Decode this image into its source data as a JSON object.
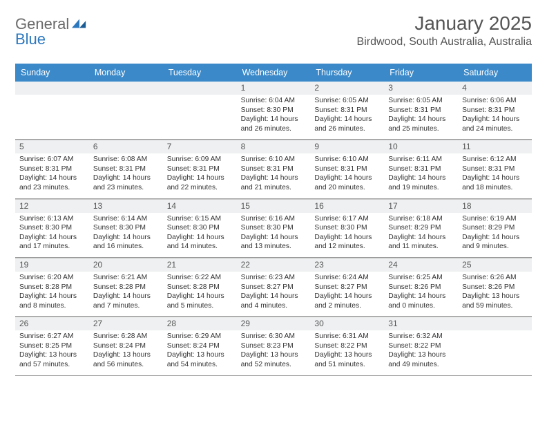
{
  "logo": {
    "text1": "General",
    "text2": "Blue"
  },
  "title": "January 2025",
  "location": "Birdwood, South Australia, Australia",
  "colors": {
    "header_bg": "#3b89c9",
    "header_text": "#ffffff",
    "numstrip_bg": "#eef0f1",
    "border": "#9a9a9a",
    "title_text": "#555555"
  },
  "weekdays": [
    "Sunday",
    "Monday",
    "Tuesday",
    "Wednesday",
    "Thursday",
    "Friday",
    "Saturday"
  ],
  "weeks": [
    {
      "nums": [
        "",
        "",
        "",
        "1",
        "2",
        "3",
        "4"
      ],
      "cells": [
        null,
        null,
        null,
        {
          "sunrise": "Sunrise: 6:04 AM",
          "sunset": "Sunset: 8:30 PM",
          "dl1": "Daylight: 14 hours",
          "dl2": "and 26 minutes."
        },
        {
          "sunrise": "Sunrise: 6:05 AM",
          "sunset": "Sunset: 8:31 PM",
          "dl1": "Daylight: 14 hours",
          "dl2": "and 26 minutes."
        },
        {
          "sunrise": "Sunrise: 6:05 AM",
          "sunset": "Sunset: 8:31 PM",
          "dl1": "Daylight: 14 hours",
          "dl2": "and 25 minutes."
        },
        {
          "sunrise": "Sunrise: 6:06 AM",
          "sunset": "Sunset: 8:31 PM",
          "dl1": "Daylight: 14 hours",
          "dl2": "and 24 minutes."
        }
      ]
    },
    {
      "nums": [
        "5",
        "6",
        "7",
        "8",
        "9",
        "10",
        "11"
      ],
      "cells": [
        {
          "sunrise": "Sunrise: 6:07 AM",
          "sunset": "Sunset: 8:31 PM",
          "dl1": "Daylight: 14 hours",
          "dl2": "and 23 minutes."
        },
        {
          "sunrise": "Sunrise: 6:08 AM",
          "sunset": "Sunset: 8:31 PM",
          "dl1": "Daylight: 14 hours",
          "dl2": "and 23 minutes."
        },
        {
          "sunrise": "Sunrise: 6:09 AM",
          "sunset": "Sunset: 8:31 PM",
          "dl1": "Daylight: 14 hours",
          "dl2": "and 22 minutes."
        },
        {
          "sunrise": "Sunrise: 6:10 AM",
          "sunset": "Sunset: 8:31 PM",
          "dl1": "Daylight: 14 hours",
          "dl2": "and 21 minutes."
        },
        {
          "sunrise": "Sunrise: 6:10 AM",
          "sunset": "Sunset: 8:31 PM",
          "dl1": "Daylight: 14 hours",
          "dl2": "and 20 minutes."
        },
        {
          "sunrise": "Sunrise: 6:11 AM",
          "sunset": "Sunset: 8:31 PM",
          "dl1": "Daylight: 14 hours",
          "dl2": "and 19 minutes."
        },
        {
          "sunrise": "Sunrise: 6:12 AM",
          "sunset": "Sunset: 8:31 PM",
          "dl1": "Daylight: 14 hours",
          "dl2": "and 18 minutes."
        }
      ]
    },
    {
      "nums": [
        "12",
        "13",
        "14",
        "15",
        "16",
        "17",
        "18"
      ],
      "cells": [
        {
          "sunrise": "Sunrise: 6:13 AM",
          "sunset": "Sunset: 8:30 PM",
          "dl1": "Daylight: 14 hours",
          "dl2": "and 17 minutes."
        },
        {
          "sunrise": "Sunrise: 6:14 AM",
          "sunset": "Sunset: 8:30 PM",
          "dl1": "Daylight: 14 hours",
          "dl2": "and 16 minutes."
        },
        {
          "sunrise": "Sunrise: 6:15 AM",
          "sunset": "Sunset: 8:30 PM",
          "dl1": "Daylight: 14 hours",
          "dl2": "and 14 minutes."
        },
        {
          "sunrise": "Sunrise: 6:16 AM",
          "sunset": "Sunset: 8:30 PM",
          "dl1": "Daylight: 14 hours",
          "dl2": "and 13 minutes."
        },
        {
          "sunrise": "Sunrise: 6:17 AM",
          "sunset": "Sunset: 8:30 PM",
          "dl1": "Daylight: 14 hours",
          "dl2": "and 12 minutes."
        },
        {
          "sunrise": "Sunrise: 6:18 AM",
          "sunset": "Sunset: 8:29 PM",
          "dl1": "Daylight: 14 hours",
          "dl2": "and 11 minutes."
        },
        {
          "sunrise": "Sunrise: 6:19 AM",
          "sunset": "Sunset: 8:29 PM",
          "dl1": "Daylight: 14 hours",
          "dl2": "and 9 minutes."
        }
      ]
    },
    {
      "nums": [
        "19",
        "20",
        "21",
        "22",
        "23",
        "24",
        "25"
      ],
      "cells": [
        {
          "sunrise": "Sunrise: 6:20 AM",
          "sunset": "Sunset: 8:28 PM",
          "dl1": "Daylight: 14 hours",
          "dl2": "and 8 minutes."
        },
        {
          "sunrise": "Sunrise: 6:21 AM",
          "sunset": "Sunset: 8:28 PM",
          "dl1": "Daylight: 14 hours",
          "dl2": "and 7 minutes."
        },
        {
          "sunrise": "Sunrise: 6:22 AM",
          "sunset": "Sunset: 8:28 PM",
          "dl1": "Daylight: 14 hours",
          "dl2": "and 5 minutes."
        },
        {
          "sunrise": "Sunrise: 6:23 AM",
          "sunset": "Sunset: 8:27 PM",
          "dl1": "Daylight: 14 hours",
          "dl2": "and 4 minutes."
        },
        {
          "sunrise": "Sunrise: 6:24 AM",
          "sunset": "Sunset: 8:27 PM",
          "dl1": "Daylight: 14 hours",
          "dl2": "and 2 minutes."
        },
        {
          "sunrise": "Sunrise: 6:25 AM",
          "sunset": "Sunset: 8:26 PM",
          "dl1": "Daylight: 14 hours",
          "dl2": "and 0 minutes."
        },
        {
          "sunrise": "Sunrise: 6:26 AM",
          "sunset": "Sunset: 8:26 PM",
          "dl1": "Daylight: 13 hours",
          "dl2": "and 59 minutes."
        }
      ]
    },
    {
      "nums": [
        "26",
        "27",
        "28",
        "29",
        "30",
        "31",
        ""
      ],
      "cells": [
        {
          "sunrise": "Sunrise: 6:27 AM",
          "sunset": "Sunset: 8:25 PM",
          "dl1": "Daylight: 13 hours",
          "dl2": "and 57 minutes."
        },
        {
          "sunrise": "Sunrise: 6:28 AM",
          "sunset": "Sunset: 8:24 PM",
          "dl1": "Daylight: 13 hours",
          "dl2": "and 56 minutes."
        },
        {
          "sunrise": "Sunrise: 6:29 AM",
          "sunset": "Sunset: 8:24 PM",
          "dl1": "Daylight: 13 hours",
          "dl2": "and 54 minutes."
        },
        {
          "sunrise": "Sunrise: 6:30 AM",
          "sunset": "Sunset: 8:23 PM",
          "dl1": "Daylight: 13 hours",
          "dl2": "and 52 minutes."
        },
        {
          "sunrise": "Sunrise: 6:31 AM",
          "sunset": "Sunset: 8:22 PM",
          "dl1": "Daylight: 13 hours",
          "dl2": "and 51 minutes."
        },
        {
          "sunrise": "Sunrise: 6:32 AM",
          "sunset": "Sunset: 8:22 PM",
          "dl1": "Daylight: 13 hours",
          "dl2": "and 49 minutes."
        },
        null
      ]
    }
  ]
}
